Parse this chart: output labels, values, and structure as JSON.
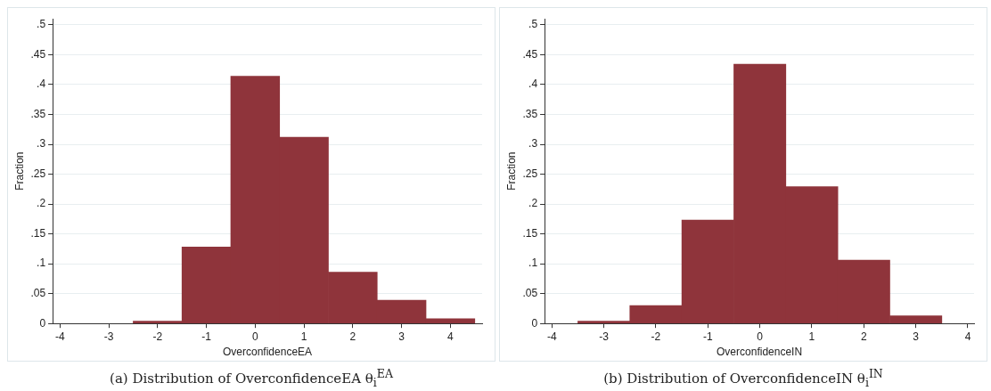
{
  "chart_data": [
    {
      "type": "histogram",
      "xlabel": "OverconfidenceEA",
      "ylabel": "Fraction",
      "bins": [
        -2.5,
        -1.5,
        -0.5,
        0.5,
        1.5,
        2.5,
        3.5,
        4.5
      ],
      "values": [
        0.004,
        0.128,
        0.414,
        0.312,
        0.086,
        0.039,
        0.008
      ],
      "color": "#8f343b",
      "xlim": [
        -4.15,
        4.65
      ],
      "xticks": [
        -4,
        -3,
        -2,
        -1,
        0,
        1,
        2,
        3,
        4
      ],
      "ylim": [
        0,
        0.51
      ],
      "yticks": [
        {
          "value": 0,
          "label": "0"
        },
        {
          "value": 0.05,
          "label": ".05"
        },
        {
          "value": 0.1,
          "label": ".1"
        },
        {
          "value": 0.15,
          "label": ".15"
        },
        {
          "value": 0.2,
          "label": ".2"
        },
        {
          "value": 0.25,
          "label": ".25"
        },
        {
          "value": 0.3,
          "label": ".3"
        },
        {
          "value": 0.35,
          "label": ".35"
        },
        {
          "value": 0.4,
          "label": ".4"
        },
        {
          "value": 0.45,
          "label": ".45"
        },
        {
          "value": 0.5,
          "label": ".5"
        }
      ],
      "grid": "y",
      "legend": false,
      "annotations": [
        "(a) Distribution of OverconfidenceEA θ$_{i}$$^{EA}$"
      ]
    },
    {
      "type": "histogram",
      "xlabel": "OverconfidenceIN",
      "ylabel": "Fraction",
      "bins": [
        -3.5,
        -2.5,
        -1.5,
        -0.5,
        0.5,
        1.5,
        2.5,
        3.5
      ],
      "values": [
        0.004,
        0.03,
        0.173,
        0.434,
        0.229,
        0.106,
        0.013
      ],
      "color": "#8f343b",
      "xlim": [
        -4.14,
        4.12
      ],
      "xticks": [
        -4,
        -3,
        -2,
        -1,
        0,
        1,
        2,
        3,
        4
      ],
      "ylim": [
        0,
        0.51
      ],
      "yticks": [
        {
          "value": 0,
          "label": "0"
        },
        {
          "value": 0.05,
          "label": ".05"
        },
        {
          "value": 0.1,
          "label": ".1"
        },
        {
          "value": 0.15,
          "label": ".15"
        },
        {
          "value": 0.2,
          "label": ".2"
        },
        {
          "value": 0.25,
          "label": ".25"
        },
        {
          "value": 0.3,
          "label": ".3"
        },
        {
          "value": 0.35,
          "label": ".35"
        },
        {
          "value": 0.4,
          "label": ".4"
        },
        {
          "value": 0.45,
          "label": ".45"
        },
        {
          "value": 0.5,
          "label": ".5"
        }
      ],
      "grid": "y",
      "legend": false,
      "annotations": [
        "(b) Distribution of OverconfidenceIN θ$_{i}$$^{IN}$"
      ]
    }
  ]
}
